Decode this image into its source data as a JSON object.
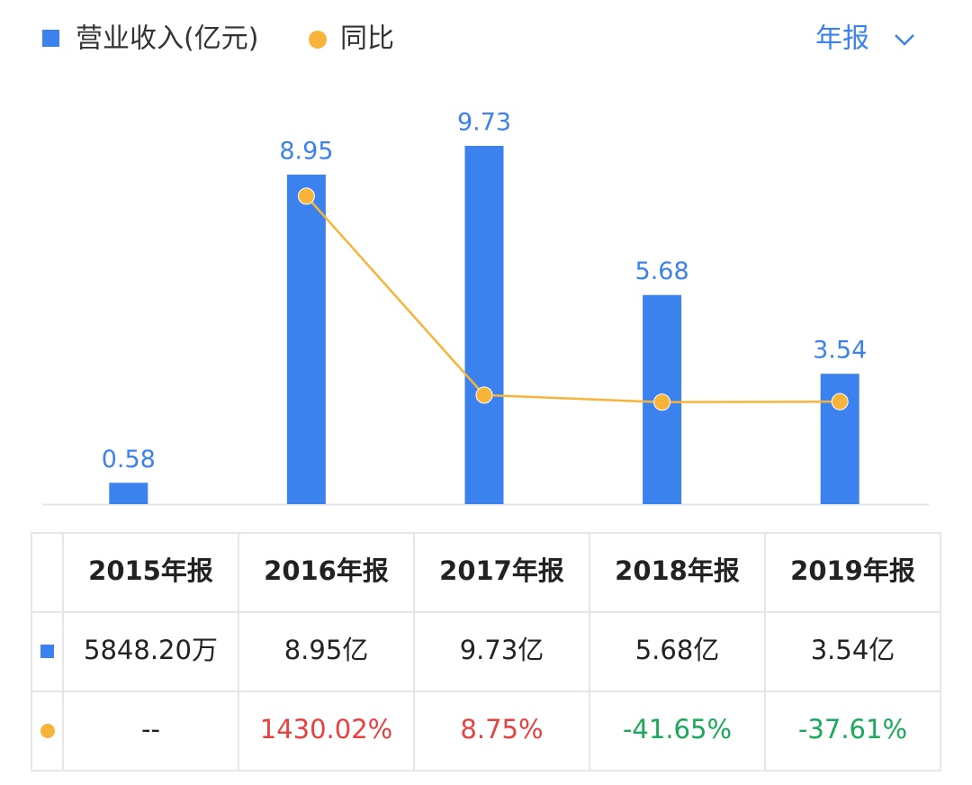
{
  "chart_data": {
    "type": "bar",
    "period": "年报",
    "categories": [
      "2015年报",
      "2016年报",
      "2017年报",
      "2018年报",
      "2019年报"
    ],
    "series": [
      {
        "name": "营业收入(亿元)",
        "color": "#3b82ee",
        "values": [
          0.58,
          8.95,
          9.73,
          5.68,
          3.54
        ]
      },
      {
        "name": "同比",
        "color": "#f7b33a",
        "type": "line",
        "axis": "y2",
        "values": [
          null,
          1430.02,
          8.75,
          -41.65,
          -37.61
        ],
        "value_labels": [
          "--",
          "1430.02%",
          "8.75%",
          "-41.65%",
          "-37.61%"
        ]
      }
    ],
    "ylim": [
      0,
      10
    ],
    "y2lim": [
      -770,
      1860
    ],
    "positive_color": "#e8403f",
    "negative_color": "#1aa85a",
    "table": {
      "rows": [
        [
          "5848.20万",
          "8.95亿",
          "9.73亿",
          "5.68亿",
          "3.54亿"
        ]
      ]
    }
  }
}
